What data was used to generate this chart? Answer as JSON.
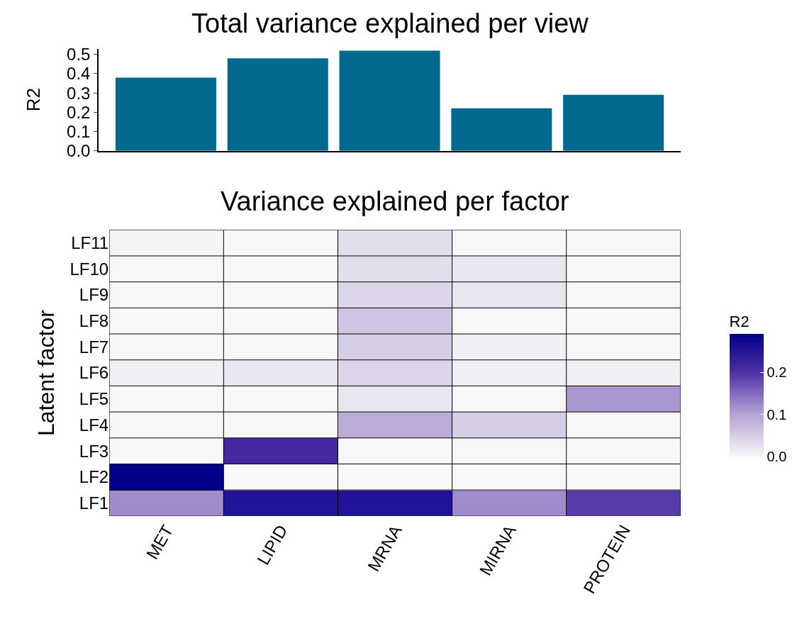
{
  "chart_data": [
    {
      "type": "bar",
      "title": "Total variance explained per view",
      "ylabel": "R2",
      "categories": [
        null,
        null,
        null,
        null,
        null
      ],
      "values": [
        0.38,
        0.48,
        0.52,
        0.22,
        0.29
      ],
      "color": "#006a8e",
      "ylim": [
        0,
        0.53
      ],
      "yticks": [
        {
          "value": 0,
          "label": "0.0"
        },
        0.1,
        0.2,
        0.3,
        0.4,
        0.5
      ]
    },
    {
      "type": "heatmap",
      "title": "Variance explained per factor",
      "ylabel": "Latent factor",
      "clabel": "R2",
      "categories": [
        "MET",
        "LIPID",
        "MRNA",
        "MIRNA",
        "PROTEIN"
      ],
      "y_categories": [
        "LF11",
        "LF10",
        "LF9",
        "LF8",
        "LF7",
        "LF6",
        "LF5",
        "LF4",
        "LF3",
        "LF2",
        "LF1"
      ],
      "cells": [
        [
          0.005,
          0,
          0.03,
          0,
          0
        ],
        [
          0,
          0,
          0.03,
          0.02,
          0
        ],
        [
          0,
          0,
          0.04,
          0.02,
          0
        ],
        [
          0,
          0,
          0.06,
          0,
          0
        ],
        [
          0,
          0,
          0.05,
          0.01,
          0
        ],
        [
          0.01,
          0.02,
          0.04,
          0.01,
          0.01
        ],
        [
          0,
          0,
          0.02,
          0,
          0.11
        ],
        [
          0,
          0,
          0.09,
          0.05,
          0
        ],
        [
          0,
          0.21,
          0,
          0,
          0
        ],
        [
          0.29,
          0,
          0,
          0,
          0
        ],
        [
          0.12,
          0.25,
          0.25,
          0.12,
          0.19
        ]
      ],
      "clim": [
        0,
        0.29
      ],
      "cticks": [
        {
          "value": 0,
          "label": "0.0"
        },
        0.1,
        0.2
      ]
    }
  ]
}
